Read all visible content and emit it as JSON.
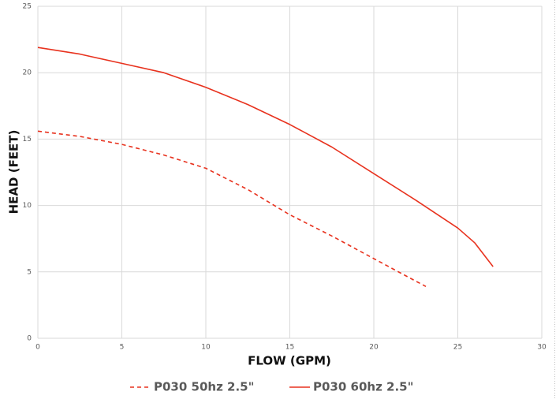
{
  "chart_data": {
    "type": "line",
    "x_label": "FLOW (GPM)",
    "y_label": "HEAD (FEET)",
    "xlim": [
      0,
      30
    ],
    "xticks": [
      0,
      5,
      10,
      15,
      20,
      25,
      30
    ],
    "ylim": [
      0,
      25
    ],
    "yticks": [
      0,
      5,
      10,
      15,
      20,
      25
    ],
    "grid": true,
    "legend": "bottom",
    "series": [
      {
        "name": "P030 50hz 2.5\"",
        "color": "#e8321e",
        "dash": true,
        "x": [
          0,
          2.5,
          5,
          7.5,
          10,
          12.5,
          15,
          17.5,
          20,
          22.5,
          23.1
        ],
        "values": [
          15.6,
          15.2,
          14.6,
          13.8,
          12.8,
          11.2,
          9.3,
          7.7,
          6.0,
          4.3,
          3.9
        ]
      },
      {
        "name": "P030 60hz 2.5\"",
        "color": "#e8321e",
        "dash": false,
        "x": [
          0,
          2.5,
          5,
          7.5,
          10,
          12.5,
          15,
          17.5,
          20,
          22.5,
          25,
          26,
          27.1
        ],
        "values": [
          21.9,
          21.4,
          20.7,
          20.0,
          18.9,
          17.6,
          16.1,
          14.4,
          12.4,
          10.4,
          8.3,
          7.2,
          5.4
        ]
      }
    ]
  }
}
